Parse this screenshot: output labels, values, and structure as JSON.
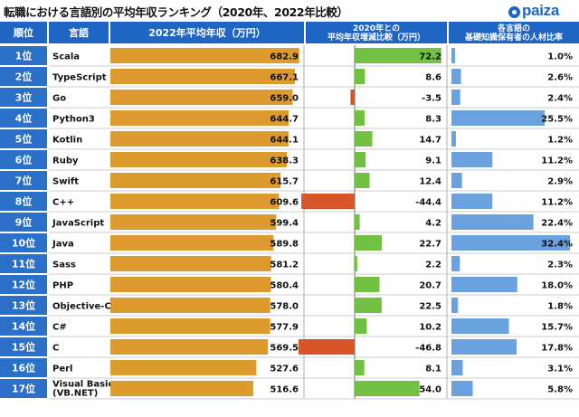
{
  "page": {
    "title": "転職における言語別の平均年収ランキング（2020年、2022年比較）",
    "logo_text": "paiza"
  },
  "colors": {
    "header_bg": "#1f66c4",
    "salary_bar": "#dd9a2e",
    "change_positive": "#73c142",
    "change_negative": "#d75527",
    "share_bar": "#6aa1df"
  },
  "chart_data": {
    "type": "table",
    "columns": [
      "順位",
      "言語",
      "2022年平均年収（万円）",
      "2020年との平均年収増減比較（万円）",
      "各言語の基礎知識保有者の人材比率"
    ],
    "rows": [
      {
        "rank": "1位",
        "language": "Scala",
        "salary_2022": 682.9,
        "change": 72.2,
        "share": 1.0
      },
      {
        "rank": "2位",
        "language": "TypeScript",
        "salary_2022": 667.1,
        "change": 8.6,
        "share": 2.6
      },
      {
        "rank": "3位",
        "language": "Go",
        "salary_2022": 659.0,
        "change": -3.5,
        "share": 2.4
      },
      {
        "rank": "4位",
        "language": "Python3",
        "salary_2022": 644.7,
        "change": 8.3,
        "share": 25.5
      },
      {
        "rank": "5位",
        "language": "Kotlin",
        "salary_2022": 644.1,
        "change": 14.7,
        "share": 1.2
      },
      {
        "rank": "6位",
        "language": "Ruby",
        "salary_2022": 638.3,
        "change": 9.1,
        "share": 11.2
      },
      {
        "rank": "7位",
        "language": "Swift",
        "salary_2022": 615.7,
        "change": 12.4,
        "share": 2.9
      },
      {
        "rank": "8位",
        "language": "C++",
        "salary_2022": 609.6,
        "change": -44.4,
        "share": 11.2
      },
      {
        "rank": "9位",
        "language": "JavaScript",
        "salary_2022": 599.4,
        "change": 4.2,
        "share": 22.4
      },
      {
        "rank": "10位",
        "language": "Java",
        "salary_2022": 589.8,
        "change": 22.7,
        "share": 32.4
      },
      {
        "rank": "11位",
        "language": "Sass",
        "salary_2022": 581.2,
        "change": 2.2,
        "share": 2.3
      },
      {
        "rank": "12位",
        "language": "PHP",
        "salary_2022": 580.4,
        "change": 20.7,
        "share": 18.0
      },
      {
        "rank": "13位",
        "language": "Objective-C",
        "salary_2022": 578.0,
        "change": 22.5,
        "share": 1.8
      },
      {
        "rank": "14位",
        "language": "C#",
        "salary_2022": 577.9,
        "change": 10.2,
        "share": 15.7
      },
      {
        "rank": "15位",
        "language": "C",
        "salary_2022": 569.5,
        "change": -46.8,
        "share": 17.8
      },
      {
        "rank": "16位",
        "language": "Perl",
        "salary_2022": 527.6,
        "change": 8.1,
        "share": 3.1
      },
      {
        "rank": "17位",
        "language": "Visual Basic\n(VB.NET)",
        "salary_2022": 516.6,
        "change": 54.0,
        "share": 5.8
      }
    ]
  }
}
